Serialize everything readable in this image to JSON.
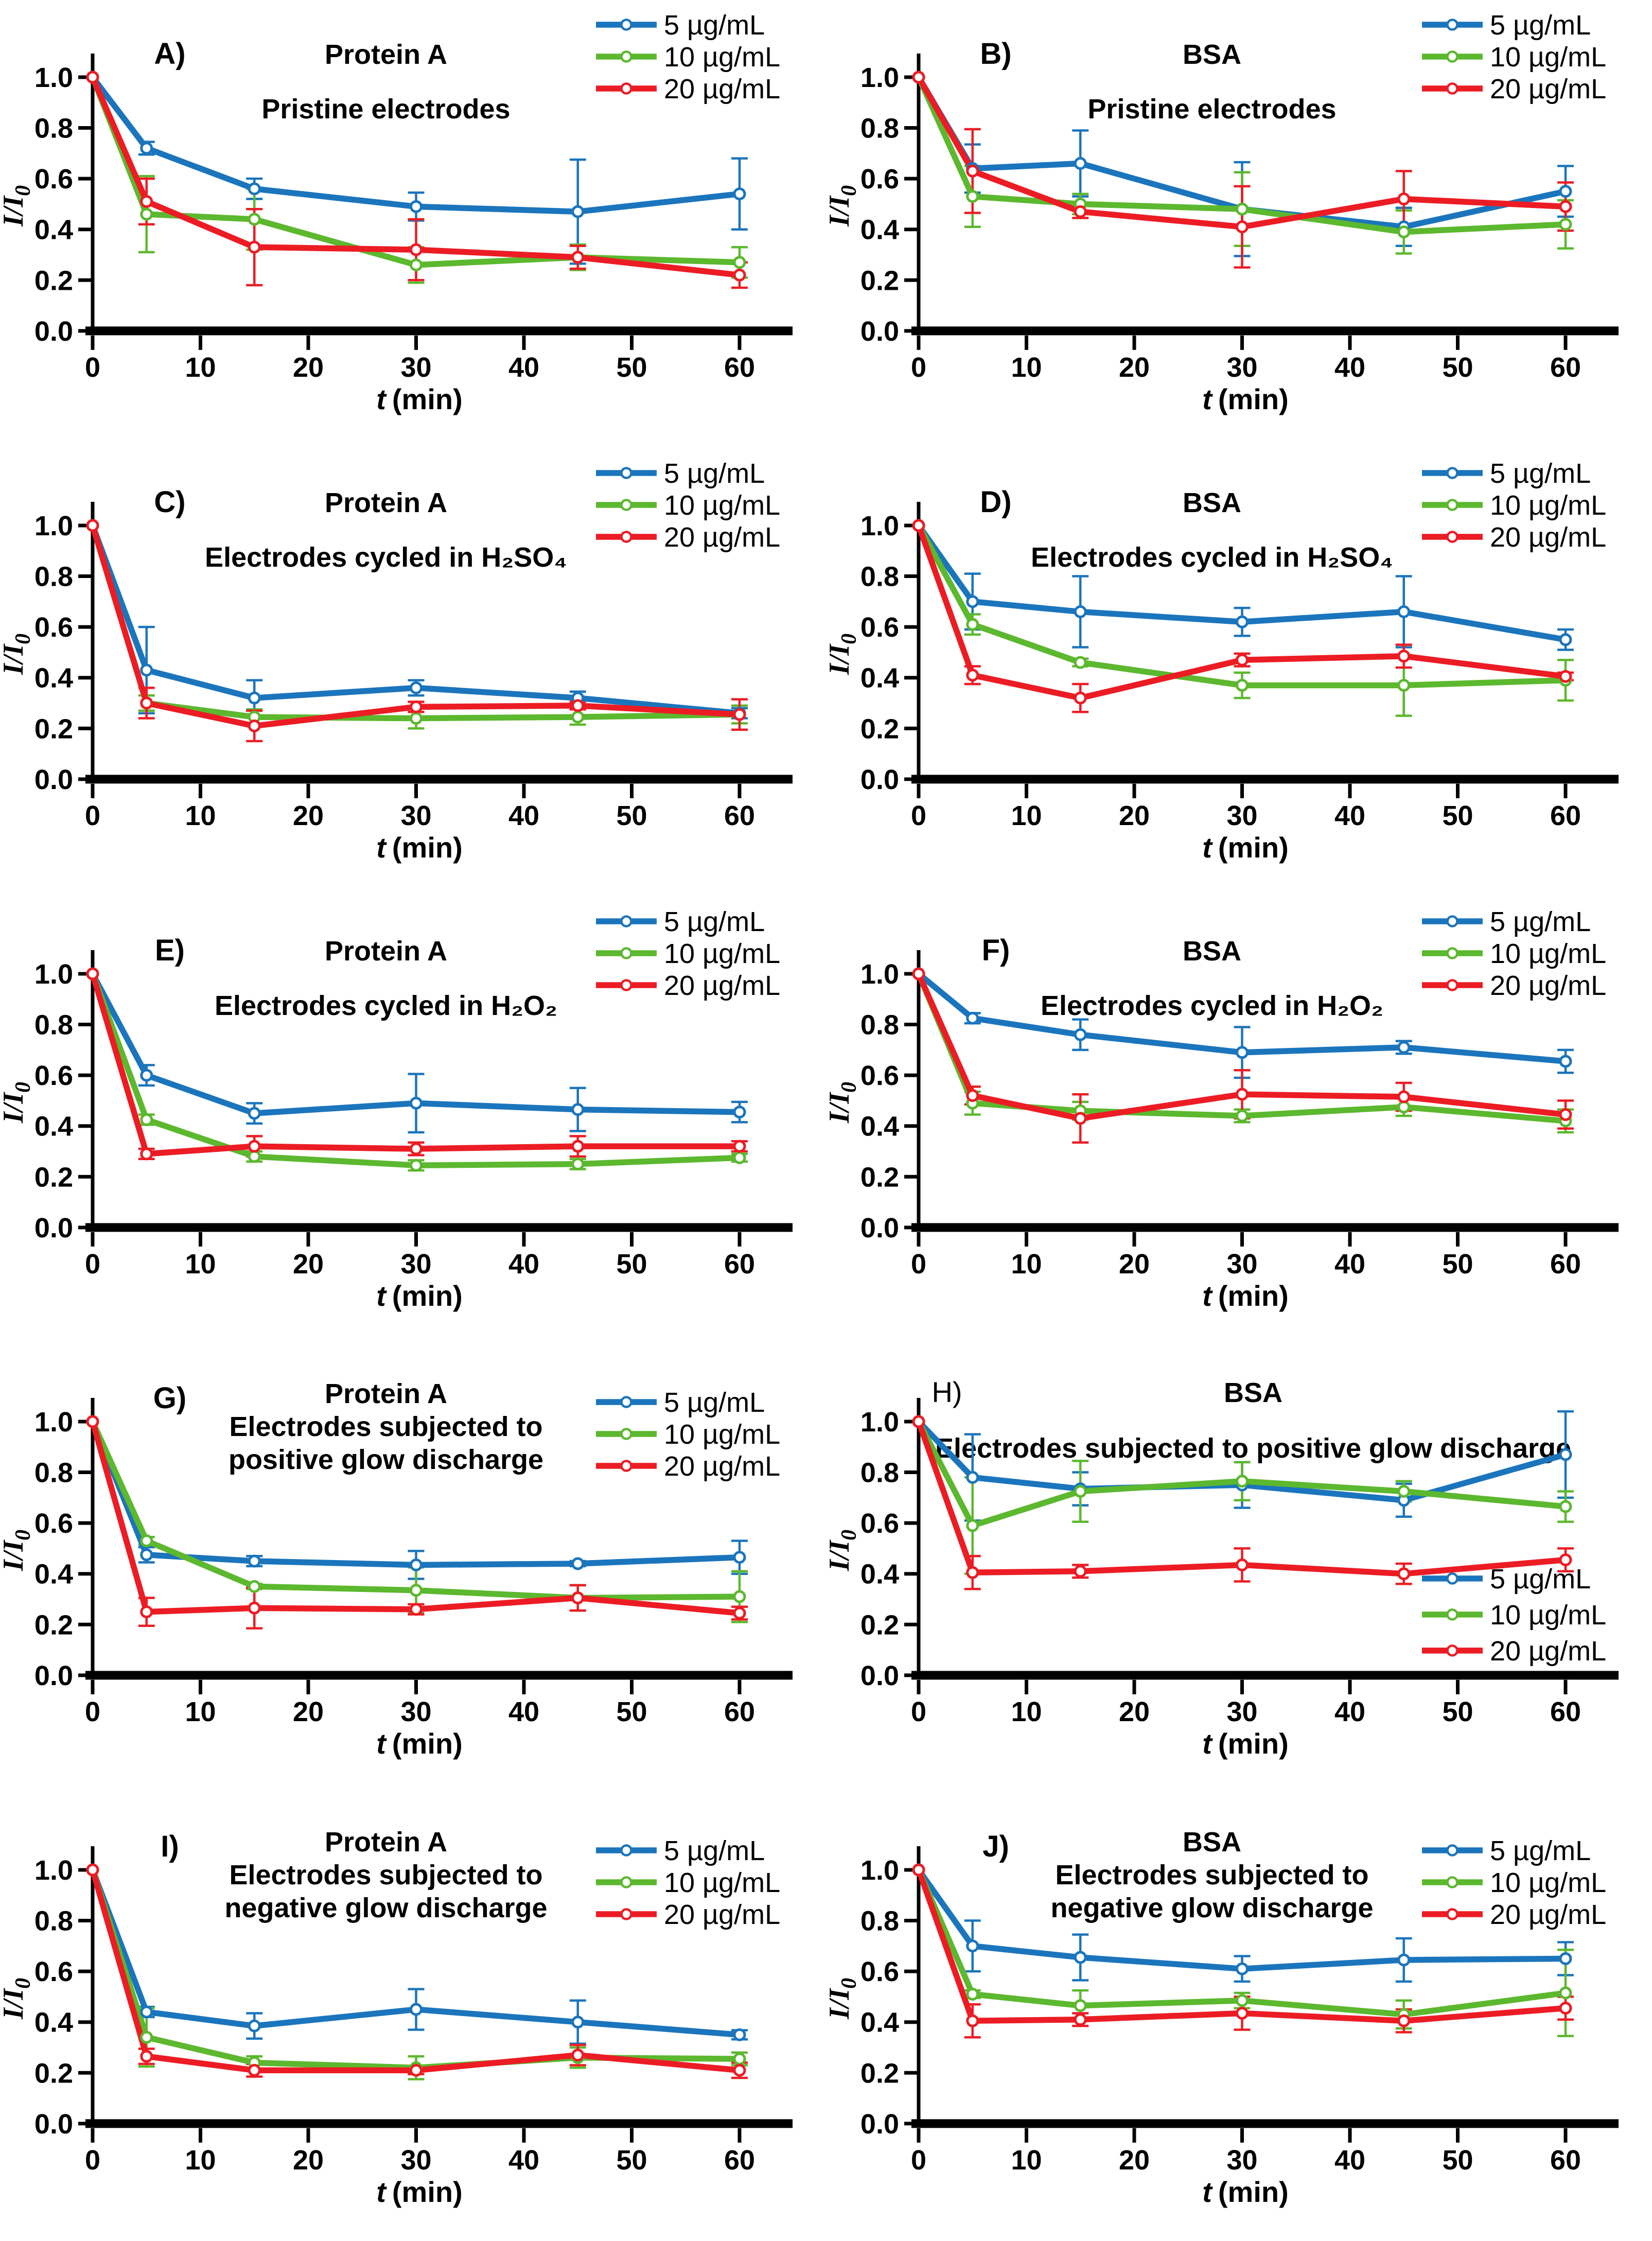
{
  "figure": {
    "background": "#ffffff",
    "x_label": {
      "italic": "t",
      "rest": "(min)",
      "full": "t (min)"
    },
    "y_label": {
      "main": "I/I",
      "sub": "0",
      "full": "I/I0"
    },
    "legend_labels": [
      "5 µg/mL",
      "10 µg/mL",
      "20 µg/mL"
    ],
    "series_colors": {
      "blue": "#1B75BC",
      "green": "#5CB82E",
      "red": "#EC1C24"
    }
  },
  "chart_data": [
    {
      "id": "A",
      "label": "A)",
      "label_bold": true,
      "type": "line",
      "title_lines": [
        "Protein A",
        "Pristine electrodes"
      ],
      "xlabel": "t (min)",
      "ylabel": "I/I0",
      "x": [
        0,
        5,
        15,
        30,
        45,
        60
      ],
      "xticks": [
        "0",
        "10",
        "20",
        "30",
        "40",
        "50",
        "60"
      ],
      "yticks": [
        "0.0",
        "0.2",
        "0.4",
        "0.6",
        "0.8",
        "1.0"
      ],
      "xlim": [
        0,
        65
      ],
      "ylim": [
        0,
        1.1
      ],
      "grid": false,
      "legend_position": "top-right",
      "series": [
        {
          "name": "5 µg/mL",
          "color": "#1B75BC",
          "values": [
            1.0,
            0.72,
            0.56,
            0.49,
            0.47,
            0.54
          ],
          "errors": [
            0,
            0.025,
            0.04,
            0.055,
            0.205,
            0.14
          ]
        },
        {
          "name": "10 µg/mL",
          "color": "#5CB82E",
          "values": [
            1.0,
            0.46,
            0.44,
            0.26,
            0.29,
            0.27
          ],
          "errors": [
            0,
            0.15,
            0.12,
            0.07,
            0.05,
            0.06
          ]
        },
        {
          "name": "20 µg/mL",
          "color": "#EC1C24",
          "values": [
            1.0,
            0.51,
            0.33,
            0.32,
            0.29,
            0.22
          ],
          "errors": [
            0,
            0.09,
            0.15,
            0.12,
            0.045,
            0.05
          ]
        }
      ]
    },
    {
      "id": "B",
      "label": "B)",
      "label_bold": true,
      "type": "line",
      "title_lines": [
        "BSA",
        "Pristine electrodes"
      ],
      "xlabel": "t (min)",
      "ylabel": "I/I0",
      "x": [
        0,
        5,
        15,
        30,
        45,
        60
      ],
      "xticks": [
        "0",
        "10",
        "20",
        "30",
        "40",
        "50",
        "60"
      ],
      "yticks": [
        "0.0",
        "0.2",
        "0.4",
        "0.6",
        "0.8",
        "1.0"
      ],
      "xlim": [
        0,
        65
      ],
      "ylim": [
        0,
        1.1
      ],
      "grid": false,
      "legend_position": "top-right",
      "series": [
        {
          "name": "5 µg/mL",
          "color": "#1B75BC",
          "values": [
            1.0,
            0.64,
            0.66,
            0.48,
            0.41,
            0.55
          ],
          "errors": [
            0,
            0.095,
            0.13,
            0.185,
            0.075,
            0.1
          ]
        },
        {
          "name": "10 µg/mL",
          "color": "#5CB82E",
          "values": [
            1.0,
            0.53,
            0.5,
            0.48,
            0.39,
            0.42
          ],
          "errors": [
            0,
            0.12,
            0.04,
            0.145,
            0.085,
            0.095
          ]
        },
        {
          "name": "20 µg/mL",
          "color": "#EC1C24",
          "values": [
            1.0,
            0.63,
            0.47,
            0.41,
            0.52,
            0.49
          ],
          "errors": [
            0,
            0.165,
            0.025,
            0.16,
            0.11,
            0.095
          ]
        }
      ]
    },
    {
      "id": "C",
      "label": "C)",
      "label_bold": true,
      "type": "line",
      "title_lines": [
        "Protein A",
        "Electrodes cycled in H₂SO₄"
      ],
      "xlabel": "t (min)",
      "ylabel": "I/I0",
      "x": [
        0,
        5,
        15,
        30,
        45,
        60
      ],
      "xticks": [
        "0",
        "10",
        "20",
        "30",
        "40",
        "50",
        "60"
      ],
      "yticks": [
        "0.0",
        "0.2",
        "0.4",
        "0.6",
        "0.8",
        "1.0"
      ],
      "xlim": [
        0,
        65
      ],
      "ylim": [
        0,
        1.1
      ],
      "grid": false,
      "legend_position": "top-right",
      "series": [
        {
          "name": "5 µg/mL",
          "color": "#1B75BC",
          "values": [
            1.0,
            0.43,
            0.32,
            0.36,
            0.32,
            0.26
          ],
          "errors": [
            0,
            0.17,
            0.07,
            0.03,
            0.025,
            0.02
          ]
        },
        {
          "name": "10 µg/mL",
          "color": "#5CB82E",
          "values": [
            1.0,
            0.3,
            0.245,
            0.24,
            0.245,
            0.255
          ],
          "errors": [
            0,
            0.03,
            0.03,
            0.04,
            0.03,
            0.035
          ]
        },
        {
          "name": "20 µg/mL",
          "color": "#EC1C24",
          "values": [
            1.0,
            0.3,
            0.21,
            0.285,
            0.29,
            0.255
          ],
          "errors": [
            0,
            0.06,
            0.06,
            0.02,
            0.015,
            0.06
          ]
        }
      ]
    },
    {
      "id": "D",
      "label": "D)",
      "label_bold": true,
      "type": "line",
      "title_lines": [
        "BSA",
        "Electrodes cycled in H₂SO₄"
      ],
      "xlabel": "t (min)",
      "ylabel": "I/I0",
      "x": [
        0,
        5,
        15,
        30,
        45,
        60
      ],
      "xticks": [
        "0",
        "10",
        "20",
        "30",
        "40",
        "50",
        "60"
      ],
      "yticks": [
        "0.0",
        "0.2",
        "0.4",
        "0.6",
        "0.8",
        "1.0"
      ],
      "xlim": [
        0,
        65
      ],
      "ylim": [
        0,
        1.1
      ],
      "grid": false,
      "legend_position": "top-right",
      "series": [
        {
          "name": "5 µg/mL",
          "color": "#1B75BC",
          "values": [
            1.0,
            0.7,
            0.66,
            0.62,
            0.66,
            0.55
          ],
          "errors": [
            0,
            0.11,
            0.14,
            0.055,
            0.14,
            0.04
          ]
        },
        {
          "name": "10 µg/mL",
          "color": "#5CB82E",
          "values": [
            1.0,
            0.61,
            0.46,
            0.37,
            0.37,
            0.39
          ],
          "errors": [
            0,
            0.04,
            0.015,
            0.05,
            0.12,
            0.08
          ]
        },
        {
          "name": "20 µg/mL",
          "color": "#EC1C24",
          "values": [
            1.0,
            0.41,
            0.32,
            0.47,
            0.485,
            0.405
          ],
          "errors": [
            0,
            0.035,
            0.055,
            0.025,
            0.045,
            0.015
          ]
        }
      ]
    },
    {
      "id": "E",
      "label": "E)",
      "label_bold": true,
      "type": "line",
      "title_lines": [
        "Protein A",
        "Electrodes cycled in H₂O₂"
      ],
      "xlabel": "t (min)",
      "ylabel": "I/I0",
      "x": [
        0,
        5,
        15,
        30,
        45,
        60
      ],
      "xticks": [
        "0",
        "10",
        "20",
        "30",
        "40",
        "50",
        "60"
      ],
      "yticks": [
        "0.0",
        "0.2",
        "0.4",
        "0.6",
        "0.8",
        "1.0"
      ],
      "xlim": [
        0,
        65
      ],
      "ylim": [
        0,
        1.1
      ],
      "grid": false,
      "legend_position": "top-right",
      "series": [
        {
          "name": "5 µg/mL",
          "color": "#1B75BC",
          "values": [
            1.0,
            0.6,
            0.45,
            0.49,
            0.465,
            0.455
          ],
          "errors": [
            0,
            0.04,
            0.04,
            0.115,
            0.085,
            0.04
          ]
        },
        {
          "name": "10 µg/mL",
          "color": "#5CB82E",
          "values": [
            1.0,
            0.425,
            0.28,
            0.245,
            0.25,
            0.275
          ],
          "errors": [
            0,
            0.02,
            0.02,
            0.02,
            0.02,
            0.015
          ]
        },
        {
          "name": "20 µg/mL",
          "color": "#EC1C24",
          "values": [
            1.0,
            0.29,
            0.32,
            0.31,
            0.32,
            0.32
          ],
          "errors": [
            0,
            0.02,
            0.04,
            0.025,
            0.04,
            0.02
          ]
        }
      ]
    },
    {
      "id": "F",
      "label": "F)",
      "label_bold": true,
      "type": "line",
      "title_lines": [
        "BSA",
        "Electrodes cycled in H₂O₂"
      ],
      "xlabel": "t (min)",
      "ylabel": "I/I0",
      "x": [
        0,
        5,
        15,
        30,
        45,
        60
      ],
      "xticks": [
        "0",
        "10",
        "20",
        "30",
        "40",
        "50",
        "60"
      ],
      "yticks": [
        "0.0",
        "0.2",
        "0.4",
        "0.6",
        "0.8",
        "1.0"
      ],
      "xlim": [
        0,
        65
      ],
      "ylim": [
        0,
        1.1
      ],
      "grid": false,
      "legend_position": "top-right",
      "series": [
        {
          "name": "5 µg/mL",
          "color": "#1B75BC",
          "values": [
            1.0,
            0.825,
            0.76,
            0.69,
            0.71,
            0.655
          ],
          "errors": [
            0,
            0.02,
            0.06,
            0.1,
            0.025,
            0.045
          ]
        },
        {
          "name": "10 µg/mL",
          "color": "#5CB82E",
          "values": [
            1.0,
            0.49,
            0.46,
            0.44,
            0.475,
            0.42
          ],
          "errors": [
            0,
            0.045,
            0.035,
            0.025,
            0.035,
            0.045
          ]
        },
        {
          "name": "20 µg/mL",
          "color": "#EC1C24",
          "values": [
            1.0,
            0.52,
            0.43,
            0.525,
            0.515,
            0.445
          ],
          "errors": [
            0,
            0.035,
            0.095,
            0.095,
            0.055,
            0.055
          ]
        }
      ]
    },
    {
      "id": "G",
      "label": "G)",
      "label_bold": true,
      "type": "line",
      "title_lines": [
        "Protein A",
        "Electrodes subjected to",
        "positive glow discharge"
      ],
      "xlabel": "t (min)",
      "ylabel": "I/I0",
      "x": [
        0,
        5,
        15,
        30,
        45,
        60
      ],
      "xticks": [
        "0",
        "10",
        "20",
        "30",
        "40",
        "50",
        "60"
      ],
      "yticks": [
        "0.0",
        "0.2",
        "0.4",
        "0.6",
        "0.8",
        "1.0"
      ],
      "xlim": [
        0,
        65
      ],
      "ylim": [
        0,
        1.1
      ],
      "grid": false,
      "legend_position": "top-right-lower",
      "series": [
        {
          "name": "5 µg/mL",
          "color": "#1B75BC",
          "values": [
            1.0,
            0.475,
            0.45,
            0.435,
            0.44,
            0.465
          ],
          "errors": [
            0,
            0.03,
            0.02,
            0.055,
            0.01,
            0.065
          ]
        },
        {
          "name": "10 µg/mL",
          "color": "#5CB82E",
          "values": [
            1.0,
            0.53,
            0.35,
            0.335,
            0.305,
            0.31
          ],
          "errors": [
            0,
            0.015,
            0.01,
            0.09,
            0.05,
            0.1
          ]
        },
        {
          "name": "20 µg/mL",
          "color": "#EC1C24",
          "values": [
            1.0,
            0.25,
            0.265,
            0.26,
            0.305,
            0.245
          ],
          "errors": [
            0,
            0.055,
            0.08,
            0.02,
            0.05,
            0.025
          ]
        }
      ]
    },
    {
      "id": "H",
      "label": "H)",
      "label_bold": false,
      "type": "line",
      "title_lines": [
        "BSA",
        "Electrodes subjected to positive glow discharge"
      ],
      "xlabel": "t (min)",
      "ylabel": "I/I0",
      "x": [
        0,
        5,
        15,
        30,
        45,
        60
      ],
      "xticks": [
        "0",
        "10",
        "20",
        "30",
        "40",
        "50",
        "60"
      ],
      "yticks": [
        "0.0",
        "0.2",
        "0.4",
        "0.6",
        "0.8",
        "1.0"
      ],
      "xlim": [
        0,
        65
      ],
      "ylim": [
        0,
        1.1
      ],
      "grid": false,
      "legend_position": "bottom-right",
      "series": [
        {
          "name": "5 µg/mL",
          "color": "#1B75BC",
          "values": [
            1.0,
            0.78,
            0.735,
            0.75,
            0.69,
            0.87
          ],
          "errors": [
            0,
            0.17,
            0.065,
            0.09,
            0.065,
            0.17
          ]
        },
        {
          "name": "10 µg/mL",
          "color": "#5CB82E",
          "values": [
            1.0,
            0.59,
            0.725,
            0.765,
            0.725,
            0.665
          ],
          "errors": [
            0,
            0.19,
            0.12,
            0.075,
            0.04,
            0.06
          ]
        },
        {
          "name": "20 µg/mL",
          "color": "#EC1C24",
          "values": [
            1.0,
            0.405,
            0.41,
            0.435,
            0.4,
            0.455
          ],
          "errors": [
            0,
            0.065,
            0.025,
            0.065,
            0.04,
            0.045
          ]
        }
      ]
    },
    {
      "id": "I",
      "label": "I)",
      "label_bold": true,
      "type": "line",
      "title_lines": [
        "Protein A",
        "Electrodes subjected to",
        "negative glow discharge"
      ],
      "xlabel": "t (min)",
      "ylabel": "I/I0",
      "x": [
        0,
        5,
        15,
        30,
        45,
        60
      ],
      "xticks": [
        "0",
        "10",
        "20",
        "30",
        "40",
        "50",
        "60"
      ],
      "yticks": [
        "0.0",
        "0.2",
        "0.4",
        "0.6",
        "0.8",
        "1.0"
      ],
      "xlim": [
        0,
        65
      ],
      "ylim": [
        0,
        1.1
      ],
      "grid": false,
      "legend_position": "top-right-lower",
      "series": [
        {
          "name": "5 µg/mL",
          "color": "#1B75BC",
          "values": [
            1.0,
            0.44,
            0.385,
            0.45,
            0.4,
            0.35
          ],
          "errors": [
            0,
            0.02,
            0.05,
            0.08,
            0.085,
            0.018
          ]
        },
        {
          "name": "10 µg/mL",
          "color": "#5CB82E",
          "values": [
            1.0,
            0.34,
            0.24,
            0.22,
            0.26,
            0.255
          ],
          "errors": [
            0,
            0.115,
            0.025,
            0.045,
            0.04,
            0.025
          ]
        },
        {
          "name": "20 µg/mL",
          "color": "#EC1C24",
          "values": [
            1.0,
            0.265,
            0.21,
            0.21,
            0.27,
            0.21
          ],
          "errors": [
            0,
            0.03,
            0.025,
            0.015,
            0.04,
            0.03
          ]
        }
      ]
    },
    {
      "id": "J",
      "label": "J)",
      "label_bold": true,
      "type": "line",
      "title_lines": [
        "BSA",
        "Electrodes subjected to",
        "negative glow discharge"
      ],
      "xlabel": "t (min)",
      "ylabel": "I/I0",
      "x": [
        0,
        5,
        15,
        30,
        45,
        60
      ],
      "xticks": [
        "0",
        "10",
        "20",
        "30",
        "40",
        "50",
        "60"
      ],
      "yticks": [
        "0.0",
        "0.2",
        "0.4",
        "0.6",
        "0.8",
        "1.0"
      ],
      "xlim": [
        0,
        65
      ],
      "ylim": [
        0,
        1.1
      ],
      "grid": false,
      "legend_position": "top-right-lower",
      "series": [
        {
          "name": "5 µg/mL",
          "color": "#1B75BC",
          "values": [
            1.0,
            0.7,
            0.655,
            0.61,
            0.645,
            0.65
          ],
          "errors": [
            0,
            0.1,
            0.09,
            0.05,
            0.085,
            0.065
          ]
        },
        {
          "name": "10 µg/mL",
          "color": "#5CB82E",
          "values": [
            1.0,
            0.51,
            0.465,
            0.485,
            0.43,
            0.515
          ],
          "errors": [
            0,
            0.015,
            0.06,
            0.03,
            0.055,
            0.17
          ]
        },
        {
          "name": "20 µg/mL",
          "color": "#EC1C24",
          "values": [
            1.0,
            0.405,
            0.41,
            0.435,
            0.405,
            0.455
          ],
          "errors": [
            0,
            0.065,
            0.025,
            0.065,
            0.045,
            0.045
          ]
        }
      ]
    }
  ]
}
